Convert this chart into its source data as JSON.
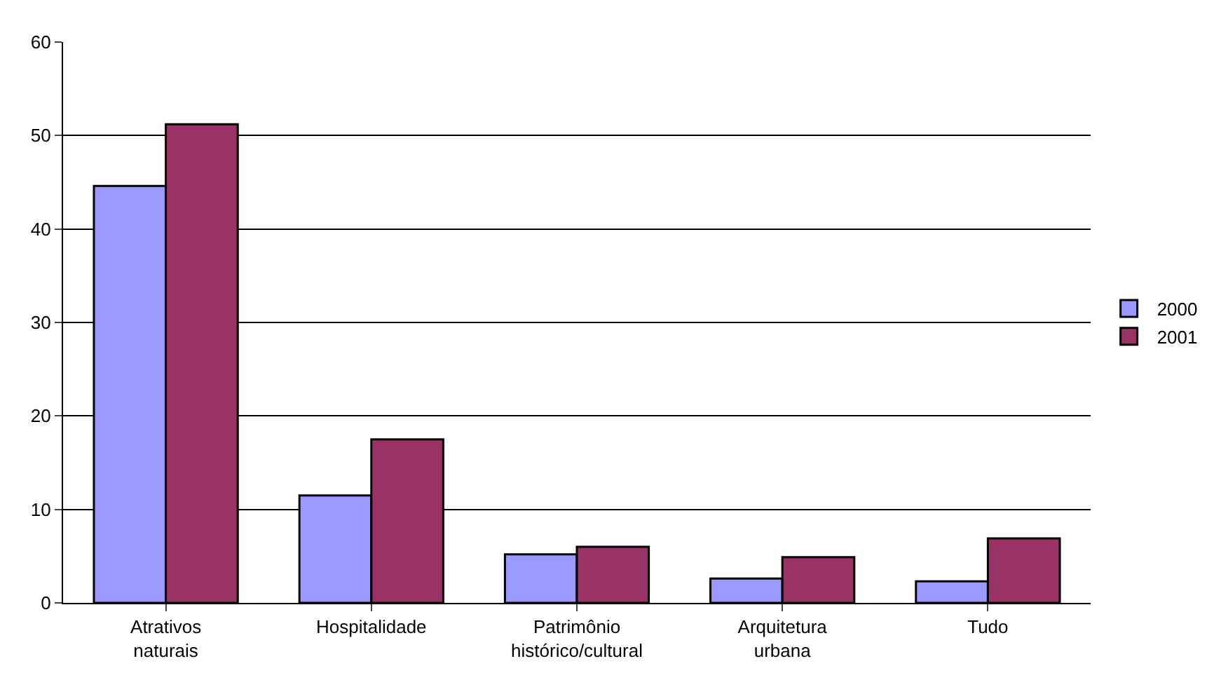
{
  "chart_data": {
    "type": "bar",
    "categories": [
      "Atrativos naturais",
      "Hospitalidade",
      "Patrimônio histórico/cultural",
      "Arquitetura urbana",
      "Tudo"
    ],
    "series": [
      {
        "name": "2000",
        "color": "#9999ff",
        "values": [
          44.6,
          11.5,
          5.2,
          2.6,
          2.3
        ]
      },
      {
        "name": "2001",
        "color": "#993366",
        "values": [
          51.2,
          17.5,
          6.0,
          4.9,
          6.9
        ]
      }
    ],
    "ylim": [
      0,
      60
    ],
    "yticks": [
      0,
      10,
      20,
      30,
      40,
      50,
      60
    ],
    "grid": "y",
    "legend": "right"
  }
}
